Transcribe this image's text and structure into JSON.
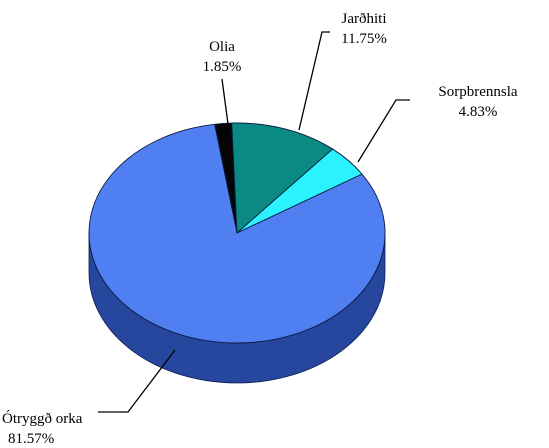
{
  "chart_data": {
    "type": "pie",
    "title": "",
    "slices": [
      {
        "label": "Ótryggð orka",
        "pct_label": "81.57%",
        "value": 81.57,
        "color": "#4F7FF0",
        "side_color": "#27479E"
      },
      {
        "label": "Olia",
        "pct_label": "1.85%",
        "value": 1.85,
        "color": "#050505",
        "side_color": "#000000"
      },
      {
        "label": "Jarðhiti",
        "pct_label": "11.75%",
        "value": 11.75,
        "color": "#0A8A82",
        "side_color": "#045852"
      },
      {
        "label": "Sorpbrennsla",
        "pct_label": "4.83%",
        "value": 4.83,
        "color": "#2BF2FF",
        "side_color": "#10A4B0"
      }
    ]
  }
}
